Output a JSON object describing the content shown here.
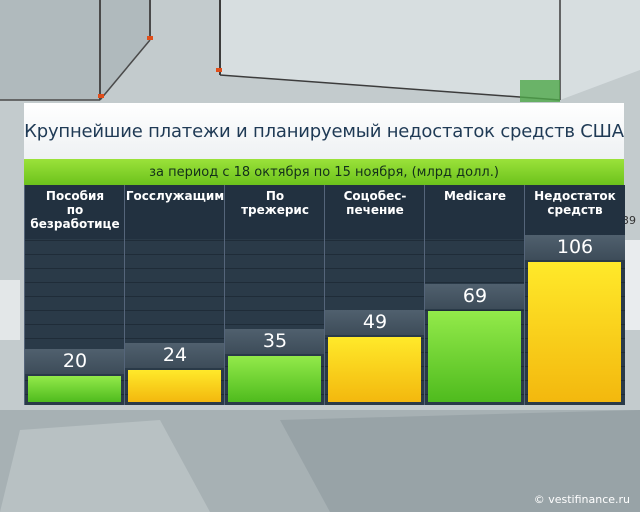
{
  "chart_data": {
    "type": "bar",
    "title": "Крупнейшие платежи и планируемый недостаток средств США",
    "subtitle": "за период с 18 октября по 15 ноября,  (млрд долл.)",
    "categories": [
      "Пособия по безработице",
      "Госслужащим",
      "По трежерис",
      "Соцобес- печение",
      "Medicare",
      "Недостаток средств"
    ],
    "category_lines": [
      [
        "Пособия",
        "по",
        "безработице"
      ],
      [
        "Госслужащим"
      ],
      [
        "По",
        "трежерис"
      ],
      [
        "Соцобес-",
        "печение"
      ],
      [
        "Medicare"
      ],
      [
        "Недостаток",
        "средств"
      ]
    ],
    "values": [
      20,
      24,
      35,
      49,
      69,
      106
    ],
    "value_labels": [
      "20",
      "24",
      "35",
      "49",
      "69",
      "106"
    ],
    "bar_colors": [
      "#6fd12f",
      "#f7d21a",
      "#6fd12f",
      "#f7d21a",
      "#6fd12f",
      "#f7d21a"
    ],
    "ylim": [
      0,
      160
    ]
  },
  "credit": "© vestifinance.ru",
  "side_number": "39",
  "colors": {
    "green": "#6fd12f",
    "yellow": "#f7d21a",
    "title_text": "#1f3a55",
    "panel_dark": "#2f3e4c"
  }
}
